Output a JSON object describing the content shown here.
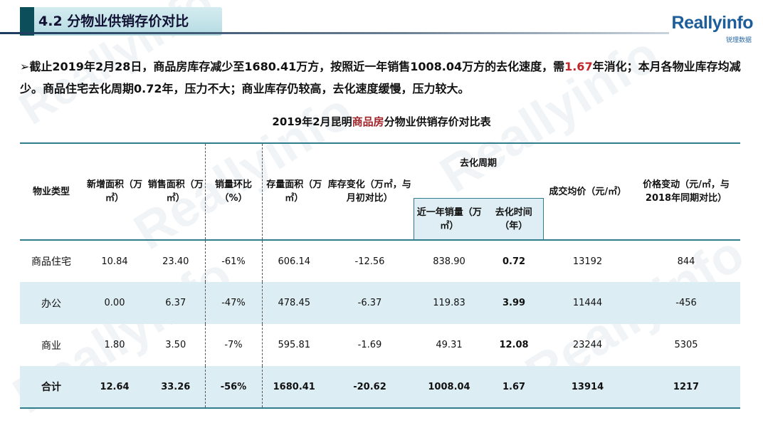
{
  "header": {
    "title": "4.2 分物业供销存价对比"
  },
  "logo": {
    "name": "Reallyinfo",
    "sub": "锐理数据"
  },
  "summary": {
    "prefix": "➢截止2019年2月28日，商品房库存减少至1680.41万方，按照近一年销售1008.04万方的去化速度，需",
    "highlight": "1.67",
    "suffix": "年消化；本月各物业库存均减少。商品住宅去化周期0.72年，压力不大；商业库存仍较高，去化速度缓慢，压力较大。"
  },
  "table": {
    "title_prefix": "2019年2月昆明",
    "title_highlight": "商品房",
    "title_suffix": "分物业供销存价对比表",
    "headers": {
      "type": "物业类型",
      "new_area": "新增面积（万㎡）",
      "sales_area": "销售面积（万㎡）",
      "sales_mom": "销量环比（%）",
      "stock_area": "存量面积（万㎡）",
      "stock_change": "库存变化（万㎡，与月初对比）",
      "destock_group": "去化周期",
      "year_sales": "近一年销量（万㎡）",
      "destock_time": "去化时间（年）",
      "avg_price": "成交均价（元/㎡）",
      "price_change": "价格变动（元/㎡，与2018年同期对比）"
    },
    "rows": [
      {
        "type": "商品住宅",
        "new_area": "10.84",
        "sales_area": "23.40",
        "sales_mom": "-61%",
        "stock_area": "606.14",
        "stock_change": "-12.56",
        "year_sales": "838.90",
        "destock_time": "0.72",
        "avg_price": "13192",
        "price_change": "844"
      },
      {
        "type": "办公",
        "new_area": "0.00",
        "sales_area": "6.37",
        "sales_mom": "-47%",
        "stock_area": "478.45",
        "stock_change": "-6.37",
        "year_sales": "119.83",
        "destock_time": "3.99",
        "avg_price": "11444",
        "price_change": "-456"
      },
      {
        "type": "商业",
        "new_area": "1.80",
        "sales_area": "3.50",
        "sales_mom": "-7%",
        "stock_area": "595.81",
        "stock_change": "-1.69",
        "year_sales": "49.31",
        "destock_time": "12.08",
        "avg_price": "23244",
        "price_change": "5305"
      },
      {
        "type": "合计",
        "new_area": "12.64",
        "sales_area": "33.26",
        "sales_mom": "-56%",
        "stock_area": "1680.41",
        "stock_change": "-20.62",
        "year_sales": "1008.04",
        "destock_time": "1.67",
        "avg_price": "13914",
        "price_change": "1217"
      }
    ]
  },
  "colors": {
    "accent": "#2f7c8c",
    "highlight_red": "#c0262b",
    "row_shade": "#ddedf4"
  }
}
